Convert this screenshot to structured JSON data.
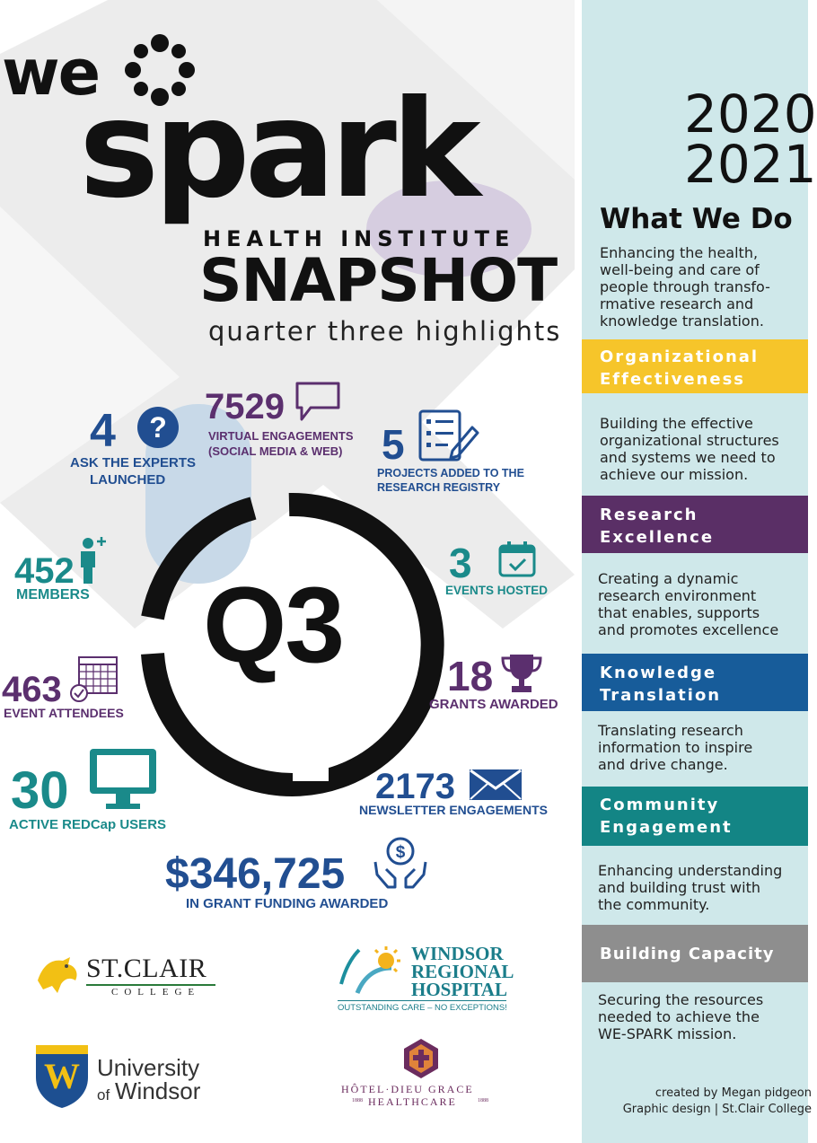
{
  "header": {
    "we": "we",
    "spark": "spark",
    "health_institute": "HEALTH INSTITUTE",
    "snapshot": "SNAPSHOT",
    "subtitle": "quarter three highlights"
  },
  "center": {
    "q3": "Q3"
  },
  "stats": {
    "ask_experts": {
      "value": "4",
      "label_line1": "ASK THE EXPERTS",
      "label_line2": "LAUNCHED",
      "icon": "question-mark-icon"
    },
    "virtual": {
      "value": "7529",
      "label_line1": "VIRTUAL ENGAGEMENTS",
      "label_line2": "(SOCIAL MEDIA & WEB)",
      "icon": "speech-bubble-icon"
    },
    "projects": {
      "value": "5",
      "label_line1": "PROJECTS ADDED TO THE",
      "label_line2": "RESEARCH REGISTRY",
      "icon": "checklist-icon"
    },
    "members": {
      "value": "452",
      "label": "MEMBERS",
      "icon": "person-plus-icon"
    },
    "events_hosted": {
      "value": "3",
      "label": "EVENTS HOSTED",
      "icon": "calendar-check-icon"
    },
    "attendees": {
      "value": "463",
      "label": "EVENT ATTENDEES",
      "icon": "calendar-grid-icon"
    },
    "grants": {
      "value": "18",
      "label": "GRANTS AWARDED",
      "icon": "trophy-icon"
    },
    "redcap": {
      "value": "30",
      "label": "ACTIVE REDCap USERS",
      "icon": "monitor-icon"
    },
    "newsletter": {
      "value": "2173",
      "label": "NEWSLETTER ENGAGEMENTS",
      "icon": "envelope-icon"
    },
    "funding": {
      "value": "$346,725",
      "label": "IN GRANT FUNDING AWARDED",
      "icon": "hands-dollar-icon"
    }
  },
  "logos": {
    "stclair_name": "ST.CLAIR",
    "stclair_sub": "COLLEGE",
    "wrh_line1": "WINDSOR",
    "wrh_line2": "REGIONAL",
    "wrh_line3": "HOSPITAL",
    "wrh_tag": "OUTSTANDING CARE – NO EXCEPTIONS!",
    "uw_line1": "University",
    "uw_of": "of",
    "uw_line2": "Windsor",
    "hdg_line1": "HÔTEL·DIEU GRACE",
    "hdg_line2": "HEALTHCARE",
    "hdg_left": "1888",
    "hdg_right": "1888"
  },
  "panel": {
    "year1": "2020",
    "year2": "2021",
    "what_we_do": "What We Do",
    "intro": "Enhancing the health,\nwell-being and care of\npeople through transfo-\nrmative research and\nknowledge translation.",
    "sections": [
      {
        "title": "Organizational\nEffectiveness",
        "color": "#f6c52a",
        "text": "Building the effective\norganizational structures\nand systems we need to\nachieve our mission."
      },
      {
        "title": "Research\nExcellence",
        "color": "#5a2f66",
        "text": "Creating a dynamic\nresearch environment\nthat enables, supports\nand promotes excellence"
      },
      {
        "title": "Knowledge\nTranslation",
        "color": "#175c9a",
        "text": "Translating research\ninformation to inspire\nand drive change."
      },
      {
        "title": "Community\nEngagement",
        "color": "#138585",
        "text": "Enhancing understanding\nand building trust with\nthe community."
      },
      {
        "title": "Building Capacity",
        "color": "#8e8e8e",
        "text": "Securing the resources\nneeded to achieve the\nWE-SPARK mission."
      }
    ],
    "credit_line1": "created by Megan pidgeon",
    "credit_line2": "Graphic design  |  St.Clair College"
  },
  "colors": {
    "purple": "#5b2f6e",
    "teal": "#1a8a8a",
    "blue": "#1d5e9e",
    "panel_bg": "#cfe8ea"
  }
}
